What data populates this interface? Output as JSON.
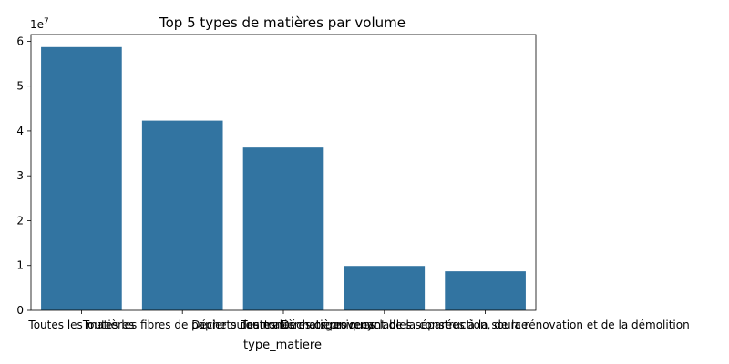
{
  "chart_data": {
    "type": "bar",
    "title": "Top 5 types de matières par volume",
    "xlabel": "type_matiere",
    "ylabel": "",
    "scale_label": "1e7",
    "categories": [
      "Toutes les matières",
      "Toutes les fibres de papier ou carton",
      "Déchets des matières organiques",
      "Toutes les matières recyclables séparées à la source",
      "Déchets provenant de la construction, de la rénovation et de la démolition"
    ],
    "values": [
      58700000,
      42300000,
      36300000,
      9900000,
      8700000
    ],
    "ylim": [
      0,
      61500000
    ],
    "yticks": [
      0,
      10000000,
      20000000,
      30000000,
      40000000,
      50000000,
      60000000
    ],
    "ytick_labels": [
      "0",
      "1",
      "2",
      "3",
      "4",
      "5",
      "6"
    ],
    "bar_color": "#3274a1",
    "grid": false
  }
}
